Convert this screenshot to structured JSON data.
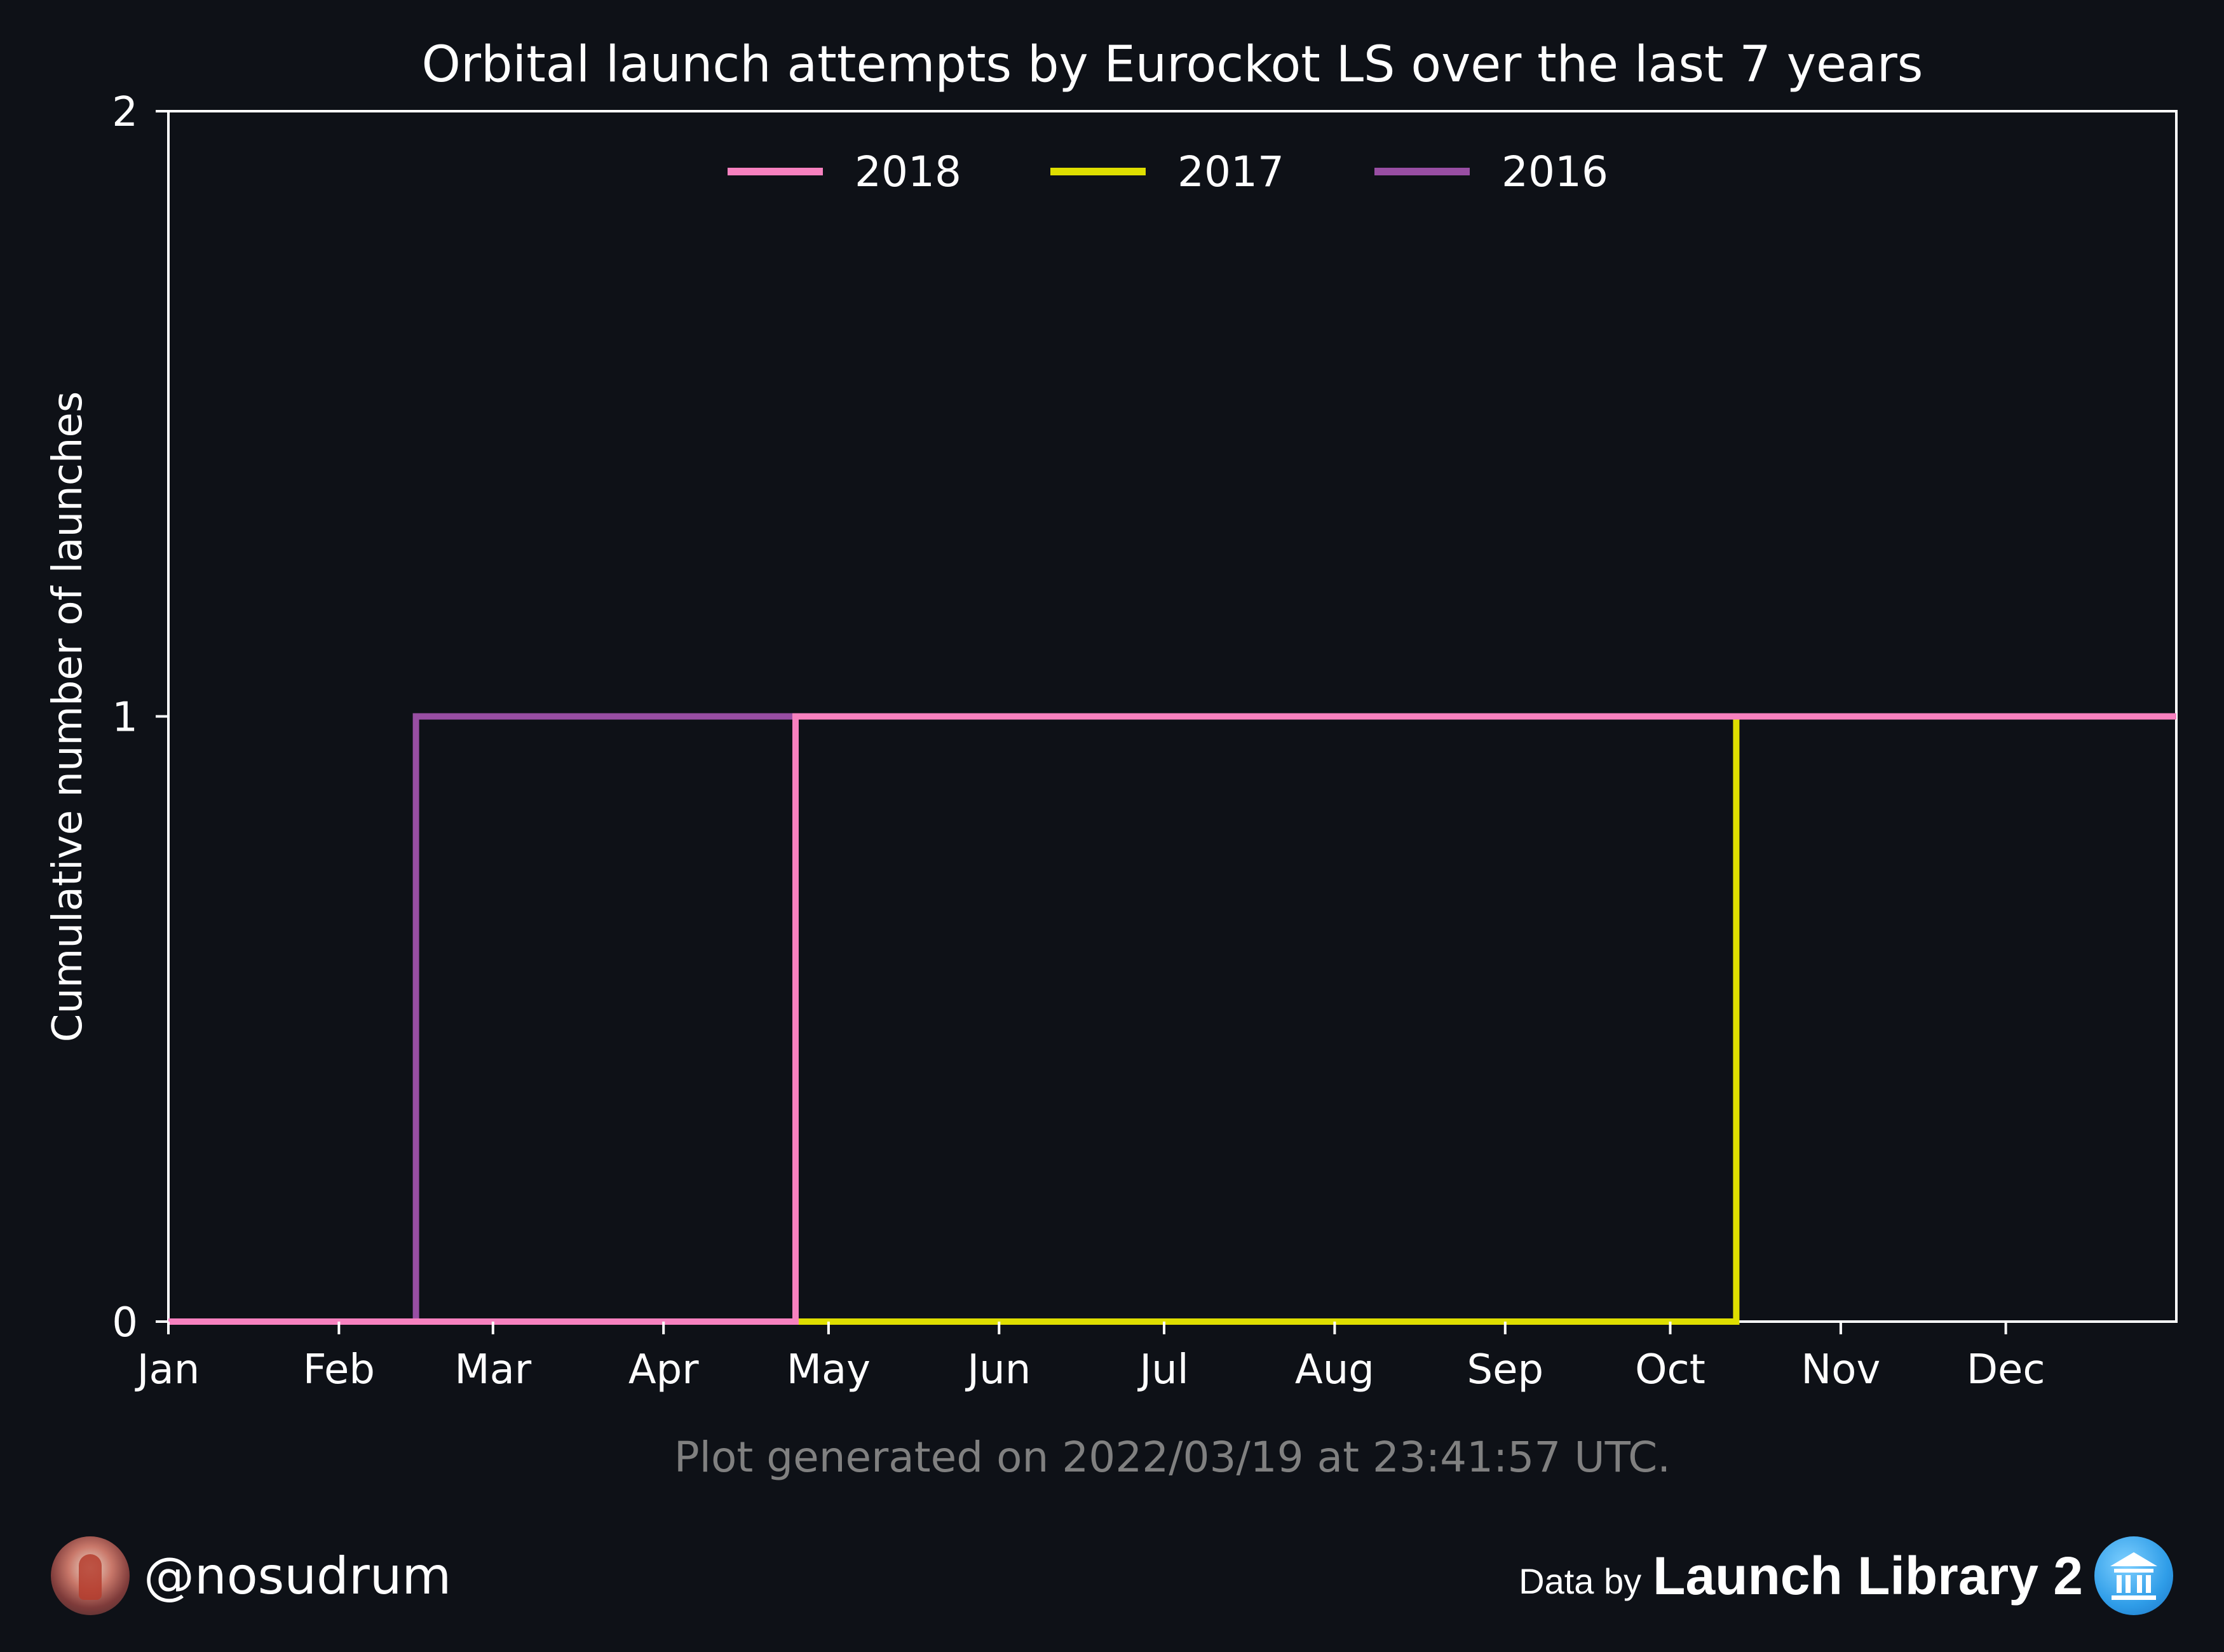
{
  "chart_data": {
    "type": "line",
    "title": "Orbital launch attempts by Eurockot LS over the last 7 years",
    "xlabel": "",
    "ylabel": "Cumulative number of launches",
    "x_ticks": [
      "Jan",
      "Feb",
      "Mar",
      "Apr",
      "May",
      "Jun",
      "Jul",
      "Aug",
      "Sep",
      "Oct",
      "Nov",
      "Dec"
    ],
    "y_ticks": [
      "0",
      "1",
      "2"
    ],
    "xlim": [
      1,
      366
    ],
    "ylim": [
      0,
      2
    ],
    "step": "post",
    "grid": false,
    "legend_position": "top-center",
    "series": [
      {
        "name": "2018",
        "color": "#f781bf",
        "x": [
          1,
          115,
          366
        ],
        "y": [
          0,
          1,
          1
        ]
      },
      {
        "name": "2017",
        "color": "#dede00",
        "x": [
          1,
          286,
          366
        ],
        "y": [
          0,
          1,
          1
        ]
      },
      {
        "name": "2016",
        "color": "#984ea3",
        "x": [
          1,
          46,
          366
        ],
        "y": [
          0,
          1,
          1
        ]
      }
    ]
  },
  "footer": {
    "generated": "Plot generated on 2022/03/19 at 23:41:57 UTC.",
    "handle": "@nosudrum",
    "data_by": "Data by",
    "source": "Launch Library 2"
  }
}
